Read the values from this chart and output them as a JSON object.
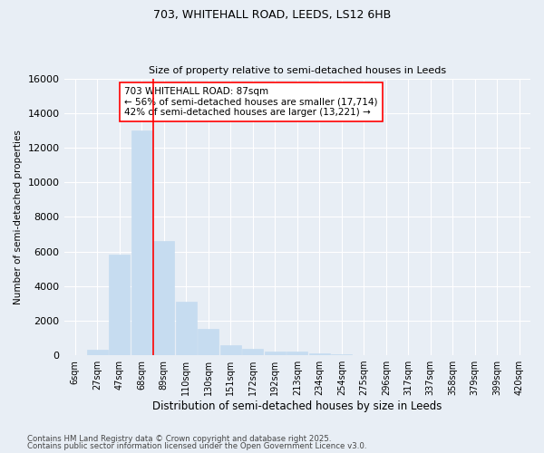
{
  "title1": "703, WHITEHALL ROAD, LEEDS, LS12 6HB",
  "title2": "Size of property relative to semi-detached houses in Leeds",
  "xlabel": "Distribution of semi-detached houses by size in Leeds",
  "ylabel": "Number of semi-detached properties",
  "categories": [
    "6sqm",
    "27sqm",
    "47sqm",
    "68sqm",
    "89sqm",
    "110sqm",
    "130sqm",
    "151sqm",
    "172sqm",
    "192sqm",
    "213sqm",
    "234sqm",
    "254sqm",
    "275sqm",
    "296sqm",
    "317sqm",
    "337sqm",
    "358sqm",
    "379sqm",
    "399sqm",
    "420sqm"
  ],
  "values": [
    0,
    300,
    5800,
    13000,
    6600,
    3100,
    1500,
    600,
    350,
    200,
    200,
    100,
    50,
    0,
    0,
    0,
    0,
    0,
    0,
    0,
    0
  ],
  "bar_color": "#c6dcf0",
  "bar_edge_color": "#c6dcf0",
  "vline_color": "red",
  "vline_pos": 3.5,
  "annotation_title": "703 WHITEHALL ROAD: 87sqm",
  "annotation_line1": "← 56% of semi-detached houses are smaller (17,714)",
  "annotation_line2": "42% of semi-detached houses are larger (13,221) →",
  "footer1": "Contains HM Land Registry data © Crown copyright and database right 2025.",
  "footer2": "Contains public sector information licensed under the Open Government Licence v3.0.",
  "ylim": [
    0,
    16000
  ],
  "yticks": [
    0,
    2000,
    4000,
    6000,
    8000,
    10000,
    12000,
    14000,
    16000
  ],
  "bg_color": "#e8eef5",
  "plot_bg_color": "#e8eef5",
  "grid_color": "#ffffff",
  "title1_fontsize": 9,
  "title2_fontsize": 8
}
